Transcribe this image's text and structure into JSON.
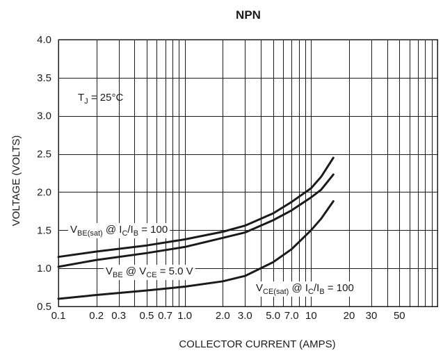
{
  "chart_data": {
    "type": "line",
    "title": "NPN",
    "xlabel": "COLLECTOR CURRENT (AMPS)",
    "ylabel": "VOLTAGE (VOLTS)",
    "x_scale": "log",
    "xlim": [
      0.1,
      100
    ],
    "ylim": [
      0.5,
      4.0
    ],
    "grid": true,
    "x_ticks": [
      {
        "value": 0.1,
        "label": "0.1"
      },
      {
        "value": 0.2,
        "label": "0.2"
      },
      {
        "value": 0.3,
        "label": "0.3"
      },
      {
        "value": 0.5,
        "label": "0.5"
      },
      {
        "value": 0.7,
        "label": "0.7"
      },
      {
        "value": 1.0,
        "label": "1.0"
      },
      {
        "value": 2.0,
        "label": "2.0"
      },
      {
        "value": 3.0,
        "label": "3.0"
      },
      {
        "value": 5.0,
        "label": "5.0"
      },
      {
        "value": 7.0,
        "label": "7.0"
      },
      {
        "value": 10,
        "label": "10"
      },
      {
        "value": 20,
        "label": "20"
      },
      {
        "value": 30,
        "label": "30"
      },
      {
        "value": 50,
        "label": "50"
      }
    ],
    "y_ticks": [
      {
        "value": 0.5,
        "label": "0.5"
      },
      {
        "value": 1.0,
        "label": "1.0"
      },
      {
        "value": 1.5,
        "label": "1.5"
      },
      {
        "value": 2.0,
        "label": "2.0"
      },
      {
        "value": 2.5,
        "label": "2.5"
      },
      {
        "value": 3.0,
        "label": "3.0"
      },
      {
        "value": 3.5,
        "label": "3.5"
      },
      {
        "value": 4.0,
        "label": "4.0"
      }
    ],
    "annotations": [
      {
        "id": "tj",
        "parts": [
          [
            "T",
            ""
          ],
          [
            "J",
            "sub"
          ],
          [
            " = 25°C",
            ""
          ]
        ]
      },
      {
        "id": "vbe_sat",
        "parts": [
          [
            "V",
            ""
          ],
          [
            "BE(sat)",
            "sub"
          ],
          [
            " @ I",
            ""
          ],
          [
            "C",
            "sub"
          ],
          [
            "/I",
            ""
          ],
          [
            "B",
            "sub"
          ],
          [
            " = 100",
            ""
          ]
        ]
      },
      {
        "id": "vbe",
        "parts": [
          [
            "V",
            ""
          ],
          [
            "BE",
            "sub"
          ],
          [
            " @ V",
            ""
          ],
          [
            "CE",
            "sub"
          ],
          [
            " = 5.0 V",
            ""
          ]
        ]
      },
      {
        "id": "vce_sat",
        "parts": [
          [
            "V",
            ""
          ],
          [
            "CE(sat)",
            "sub"
          ],
          [
            " @ I",
            ""
          ],
          [
            "C",
            "sub"
          ],
          [
            "/I",
            ""
          ],
          [
            "B",
            "sub"
          ],
          [
            " = 100",
            ""
          ]
        ]
      }
    ],
    "series": [
      {
        "id": "vbe_sat",
        "x": [
          0.1,
          0.2,
          0.5,
          1.0,
          2.0,
          3.0,
          5.0,
          7.0,
          10,
          12,
          15
        ],
        "y": [
          1.15,
          1.22,
          1.3,
          1.38,
          1.48,
          1.56,
          1.72,
          1.87,
          2.05,
          2.2,
          2.45
        ]
      },
      {
        "id": "vbe",
        "x": [
          0.1,
          0.2,
          0.5,
          1.0,
          2.0,
          3.0,
          5.0,
          7.0,
          10,
          12,
          15
        ],
        "y": [
          1.02,
          1.11,
          1.2,
          1.28,
          1.4,
          1.47,
          1.63,
          1.76,
          1.93,
          2.03,
          2.23
        ]
      },
      {
        "id": "vce_sat",
        "x": [
          0.1,
          0.2,
          0.5,
          1.0,
          2.0,
          3.0,
          5.0,
          7.0,
          10,
          12,
          15
        ],
        "y": [
          0.6,
          0.65,
          0.71,
          0.76,
          0.83,
          0.9,
          1.08,
          1.25,
          1.5,
          1.65,
          1.88
        ]
      }
    ]
  }
}
